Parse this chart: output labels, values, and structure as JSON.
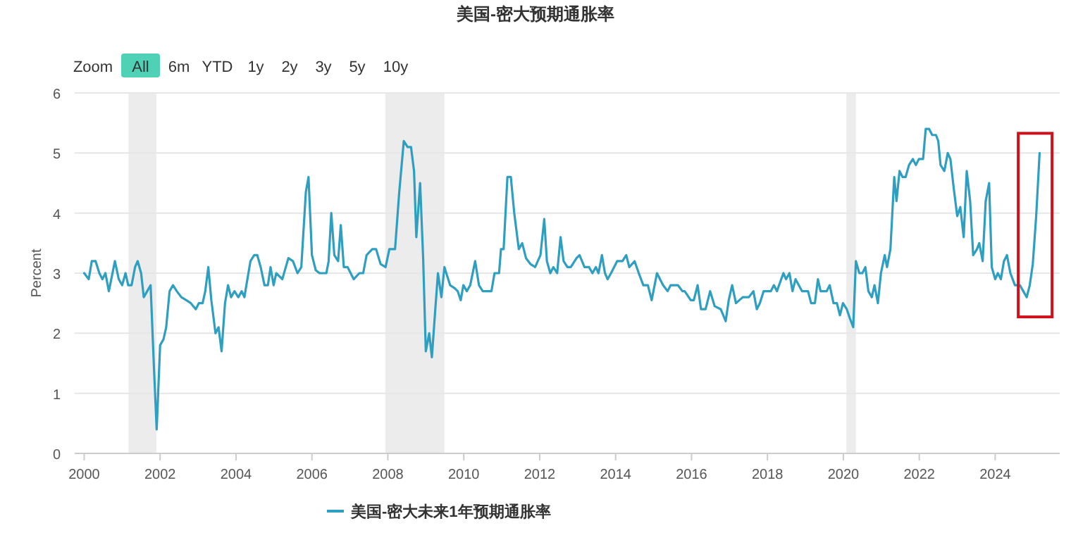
{
  "chart_data": {
    "type": "line",
    "title": "美国-密大预期通胀率",
    "ylabel": "Percent",
    "annotations": [
      "Zoom",
      "All",
      "6m",
      "YTD",
      "1y",
      "2y",
      "3y",
      "5y",
      "10y"
    ],
    "xlim": [
      1999.75,
      2025.7
    ],
    "xticks": [
      {
        "value": 2000,
        "label": "2000"
      },
      {
        "value": 2002,
        "label": "2002"
      },
      {
        "value": 2004,
        "label": "2004"
      },
      {
        "value": 2006,
        "label": "2006"
      },
      {
        "value": 2008,
        "label": "2008"
      },
      {
        "value": 2010,
        "label": "2010"
      },
      {
        "value": 2012,
        "label": "2012"
      },
      {
        "value": 2014,
        "label": "2014"
      },
      {
        "value": 2016,
        "label": "2016"
      },
      {
        "value": 2018,
        "label": "2018"
      },
      {
        "value": 2020,
        "label": "2020"
      },
      {
        "value": 2022,
        "label": "2022"
      },
      {
        "value": 2024,
        "label": "2024"
      }
    ],
    "ylim": [
      0,
      6
    ],
    "yticks": [
      0,
      1,
      2,
      3,
      4,
      5,
      6
    ],
    "grid": "y",
    "legend": "bottom",
    "marker": "none",
    "line_style": "solid",
    "bands": [
      {
        "axis": "x",
        "from": 2001.17,
        "to": 2001.9,
        "color": "#ececec"
      },
      {
        "axis": "x",
        "from": 2007.93,
        "to": 2009.49,
        "color": "#ececec"
      },
      {
        "axis": "x",
        "from": 2020.08,
        "to": 2020.33,
        "color": "#ececec"
      }
    ],
    "series": [
      {
        "name": "美国-密大未来1年预期通胀率",
        "color": "#2e9fc0",
        "x": [
          2000.0,
          2000.12,
          2000.2,
          2000.3,
          2000.4,
          2000.48,
          2000.56,
          2000.65,
          2000.81,
          2000.91,
          2001.0,
          2001.09,
          2001.16,
          2001.25,
          2001.34,
          2001.41,
          2001.5,
          2001.57,
          2001.66,
          2001.75,
          2001.84,
          2001.91,
          2002.0,
          2002.09,
          2002.16,
          2002.25,
          2002.34,
          2002.44,
          2002.56,
          2002.69,
          2002.81,
          2002.94,
          2003.02,
          2003.12,
          2003.19,
          2003.27,
          2003.35,
          2003.46,
          2003.54,
          2003.62,
          2003.71,
          2003.79,
          2003.87,
          2003.96,
          2004.06,
          2004.15,
          2004.22,
          2004.38,
          2004.48,
          2004.56,
          2004.65,
          2004.75,
          2004.84,
          2004.91,
          2004.99,
          2005.06,
          2005.22,
          2005.38,
          2005.5,
          2005.62,
          2005.72,
          2005.84,
          2005.91,
          2006.0,
          2006.1,
          2006.2,
          2006.38,
          2006.44,
          2006.51,
          2006.59,
          2006.69,
          2006.76,
          2006.84,
          2006.94,
          2007.1,
          2007.25,
          2007.35,
          2007.44,
          2007.59,
          2007.69,
          2007.81,
          2007.94,
          2008.04,
          2008.19,
          2008.3,
          2008.42,
          2008.52,
          2008.61,
          2008.69,
          2008.75,
          2008.85,
          2008.93,
          2009.0,
          2009.09,
          2009.16,
          2009.25,
          2009.32,
          2009.41,
          2009.49,
          2009.64,
          2009.76,
          2009.84,
          2009.92,
          2009.99,
          2010.08,
          2010.17,
          2010.3,
          2010.4,
          2010.5,
          2010.73,
          2010.81,
          2010.93,
          2010.98,
          2011.05,
          2011.15,
          2011.24,
          2011.33,
          2011.45,
          2011.54,
          2011.64,
          2011.76,
          2011.88,
          2011.95,
          2012.02,
          2012.12,
          2012.19,
          2012.28,
          2012.36,
          2012.46,
          2012.55,
          2012.63,
          2012.73,
          2012.82,
          2012.97,
          2013.05,
          2013.18,
          2013.3,
          2013.39,
          2013.48,
          2013.55,
          2013.64,
          2013.72,
          2013.79,
          2013.88,
          2014.04,
          2014.18,
          2014.28,
          2014.36,
          2014.5,
          2014.61,
          2014.73,
          2014.85,
          2014.95,
          2015.09,
          2015.25,
          2015.37,
          2015.45,
          2015.64,
          2015.76,
          2015.82,
          2015.98,
          2016.06,
          2016.16,
          2016.25,
          2016.37,
          2016.49,
          2016.61,
          2016.77,
          2016.9,
          2016.98,
          2017.07,
          2017.17,
          2017.26,
          2017.35,
          2017.51,
          2017.63,
          2017.72,
          2017.8,
          2017.9,
          2018.09,
          2018.17,
          2018.25,
          2018.42,
          2018.49,
          2018.58,
          2018.66,
          2018.74,
          2018.91,
          2019.07,
          2019.15,
          2019.25,
          2019.33,
          2019.4,
          2019.56,
          2019.64,
          2019.74,
          2019.83,
          2019.91,
          2019.99,
          2020.09,
          2020.17,
          2020.26,
          2020.33,
          2020.42,
          2020.5,
          2020.58,
          2020.66,
          2020.75,
          2020.82,
          2020.91,
          2020.99,
          2021.09,
          2021.15,
          2021.24,
          2021.34,
          2021.4,
          2021.48,
          2021.56,
          2021.64,
          2021.73,
          2021.83,
          2021.91,
          2021.99,
          2022.1,
          2022.17,
          2022.26,
          2022.34,
          2022.44,
          2022.5,
          2022.56,
          2022.66,
          2022.75,
          2022.82,
          2022.91,
          2023.0,
          2023.08,
          2023.17,
          2023.25,
          2023.34,
          2023.42,
          2023.52,
          2023.58,
          2023.67,
          2023.75,
          2023.84,
          2023.91,
          2024.0,
          2024.07,
          2024.15,
          2024.23,
          2024.31,
          2024.4,
          2024.52,
          2024.65,
          2024.74,
          2024.83,
          2024.91,
          2024.99,
          2025.08,
          2025.17
        ],
        "values": [
          3.0,
          2.9,
          3.2,
          3.2,
          3.0,
          2.9,
          3.0,
          2.7,
          3.2,
          2.9,
          2.8,
          3.0,
          2.8,
          2.8,
          3.1,
          3.2,
          3.0,
          2.6,
          2.7,
          2.8,
          1.4,
          0.4,
          1.8,
          1.9,
          2.1,
          2.7,
          2.8,
          2.7,
          2.6,
          2.55,
          2.5,
          2.4,
          2.5,
          2.5,
          2.7,
          3.1,
          2.55,
          2.0,
          2.1,
          1.7,
          2.5,
          2.8,
          2.6,
          2.7,
          2.6,
          2.7,
          2.6,
          3.2,
          3.3,
          3.3,
          3.1,
          2.8,
          2.8,
          3.1,
          2.8,
          3.0,
          2.9,
          3.25,
          3.2,
          3.0,
          3.1,
          4.35,
          4.6,
          3.3,
          3.05,
          3.0,
          3.0,
          3.2,
          4.0,
          3.3,
          3.2,
          3.8,
          3.1,
          3.1,
          2.9,
          3.0,
          3.0,
          3.3,
          3.4,
          3.4,
          3.15,
          3.1,
          3.4,
          3.4,
          4.35,
          5.2,
          5.1,
          5.1,
          4.7,
          3.6,
          4.5,
          3.25,
          1.7,
          2.0,
          1.6,
          2.4,
          3.0,
          2.6,
          3.1,
          2.8,
          2.75,
          2.7,
          2.55,
          2.8,
          2.7,
          2.8,
          3.2,
          2.8,
          2.7,
          2.7,
          3.0,
          3.0,
          3.4,
          3.4,
          4.6,
          4.6,
          4.0,
          3.4,
          3.5,
          3.25,
          3.15,
          3.1,
          3.2,
          3.3,
          3.9,
          3.2,
          3.0,
          3.1,
          3.0,
          3.6,
          3.2,
          3.1,
          3.1,
          3.25,
          3.3,
          3.1,
          3.1,
          3.0,
          3.1,
          3.0,
          3.3,
          3.0,
          2.9,
          3.0,
          3.2,
          3.2,
          3.3,
          3.1,
          3.2,
          3.0,
          2.8,
          2.8,
          2.55,
          3.0,
          2.8,
          2.7,
          2.8,
          2.8,
          2.7,
          2.7,
          2.55,
          2.55,
          2.8,
          2.4,
          2.4,
          2.7,
          2.45,
          2.4,
          2.2,
          2.55,
          2.8,
          2.5,
          2.55,
          2.6,
          2.6,
          2.7,
          2.4,
          2.5,
          2.7,
          2.7,
          2.8,
          2.7,
          3.0,
          2.9,
          3.0,
          2.7,
          2.9,
          2.7,
          2.7,
          2.5,
          2.5,
          2.9,
          2.7,
          2.7,
          2.8,
          2.5,
          2.5,
          2.3,
          2.5,
          2.4,
          2.25,
          2.1,
          3.2,
          3.0,
          3.0,
          3.1,
          2.7,
          2.6,
          2.8,
          2.5,
          3.0,
          3.3,
          3.1,
          3.4,
          4.6,
          4.2,
          4.7,
          4.6,
          4.6,
          4.8,
          4.9,
          4.8,
          4.9,
          4.9,
          5.4,
          5.4,
          5.3,
          5.3,
          5.2,
          4.8,
          4.7,
          5.0,
          4.9,
          4.4,
          3.95,
          4.1,
          3.6,
          4.7,
          4.2,
          3.3,
          3.4,
          3.5,
          3.2,
          4.2,
          4.5,
          3.1,
          2.9,
          3.0,
          2.9,
          3.2,
          3.3,
          3.0,
          2.8,
          2.8,
          2.7,
          2.6,
          2.8,
          3.15,
          3.95,
          5.0
        ]
      }
    ]
  }
}
